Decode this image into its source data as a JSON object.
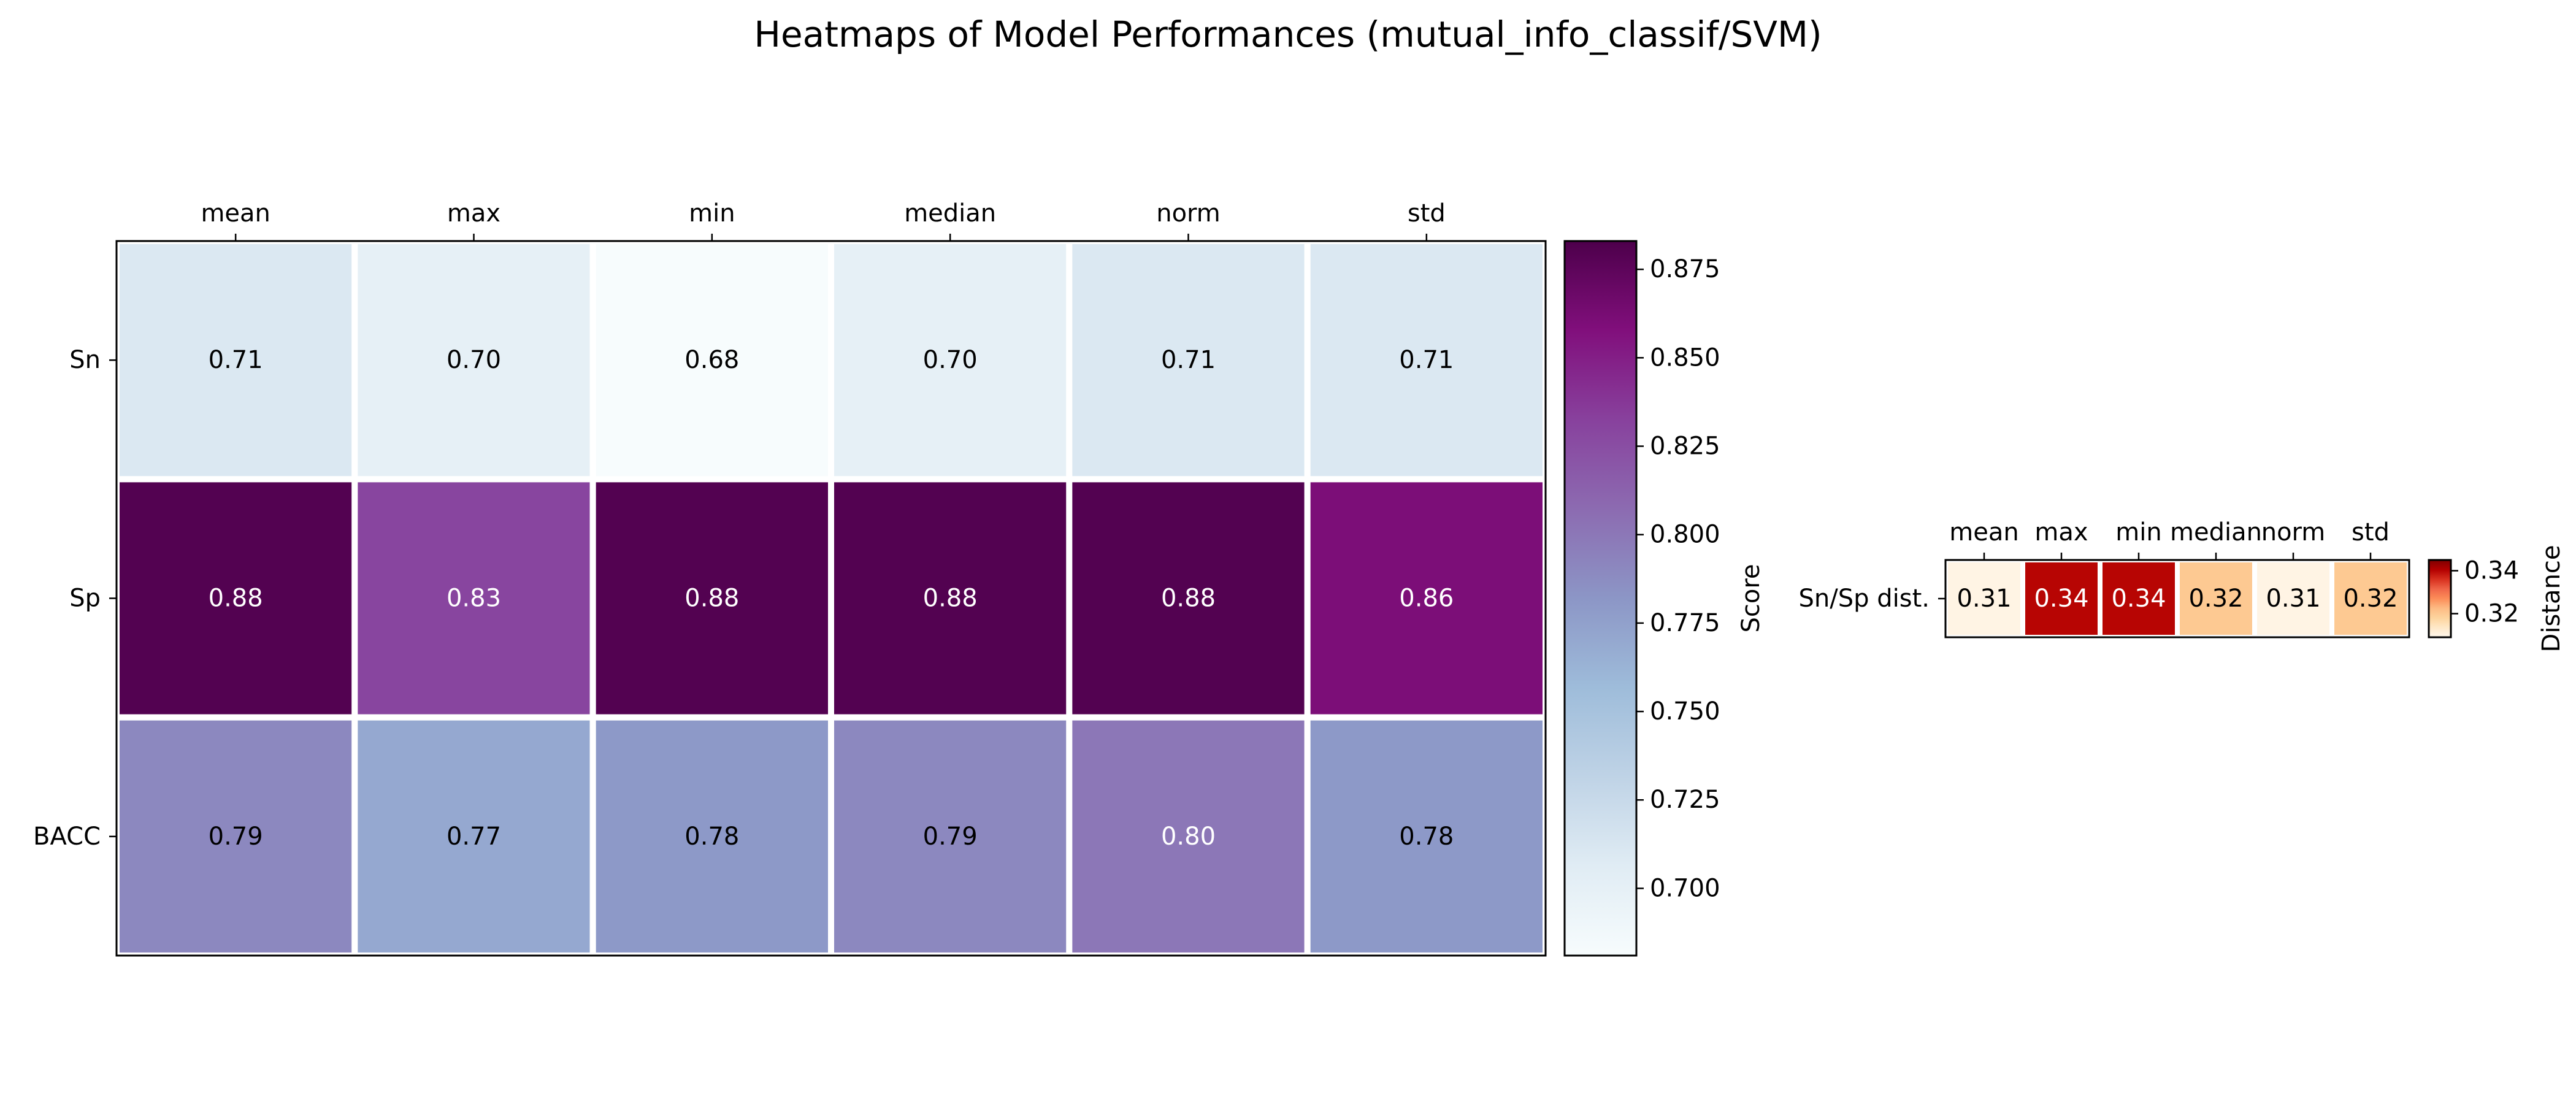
{
  "title": "Heatmaps of Model Performances (mutual_info_classif/SVM)",
  "chart_data": [
    {
      "type": "heatmap",
      "columns": [
        "mean",
        "max",
        "min",
        "median",
        "norm",
        "std"
      ],
      "rows": [
        "Sn",
        "Sp",
        "BACC"
      ],
      "values": [
        [
          0.71,
          0.7,
          0.68,
          0.7,
          0.71,
          0.71
        ],
        [
          0.88,
          0.83,
          0.88,
          0.88,
          0.88,
          0.86
        ],
        [
          0.79,
          0.77,
          0.78,
          0.79,
          0.8,
          0.78
        ]
      ],
      "value_labels": [
        [
          "0.71",
          "0.70",
          "0.68",
          "0.70",
          "0.71",
          "0.71"
        ],
        [
          "0.88",
          "0.83",
          "0.88",
          "0.88",
          "0.88",
          "0.86"
        ],
        [
          "0.79",
          "0.77",
          "0.78",
          "0.79",
          "0.80",
          "0.78"
        ]
      ],
      "colormap": "BuPu",
      "colorbar": {
        "label": "Score",
        "range": [
          0.681,
          0.883
        ],
        "ticks": [
          0.7,
          0.725,
          0.75,
          0.775,
          0.8,
          0.825,
          0.85,
          0.875
        ],
        "tick_labels": [
          "0.700",
          "0.725",
          "0.750",
          "0.775",
          "0.800",
          "0.825",
          "0.850",
          "0.875"
        ]
      },
      "column_labels_position": "top"
    },
    {
      "type": "heatmap",
      "columns": [
        "mean",
        "max",
        "min",
        "median",
        "norm",
        "std"
      ],
      "rows": [
        "Sn/Sp dist."
      ],
      "values": [
        [
          0.31,
          0.34,
          0.34,
          0.32,
          0.31,
          0.32
        ]
      ],
      "value_labels": [
        [
          "0.31",
          "0.34",
          "0.34",
          "0.32",
          "0.31",
          "0.32"
        ]
      ],
      "colormap": "OrRd",
      "colorbar": {
        "label": "Distance",
        "range": [
          0.309,
          0.345
        ],
        "ticks": [
          0.32,
          0.34
        ],
        "tick_labels": [
          "0.32",
          "0.34"
        ]
      },
      "column_labels_position": "top"
    }
  ]
}
